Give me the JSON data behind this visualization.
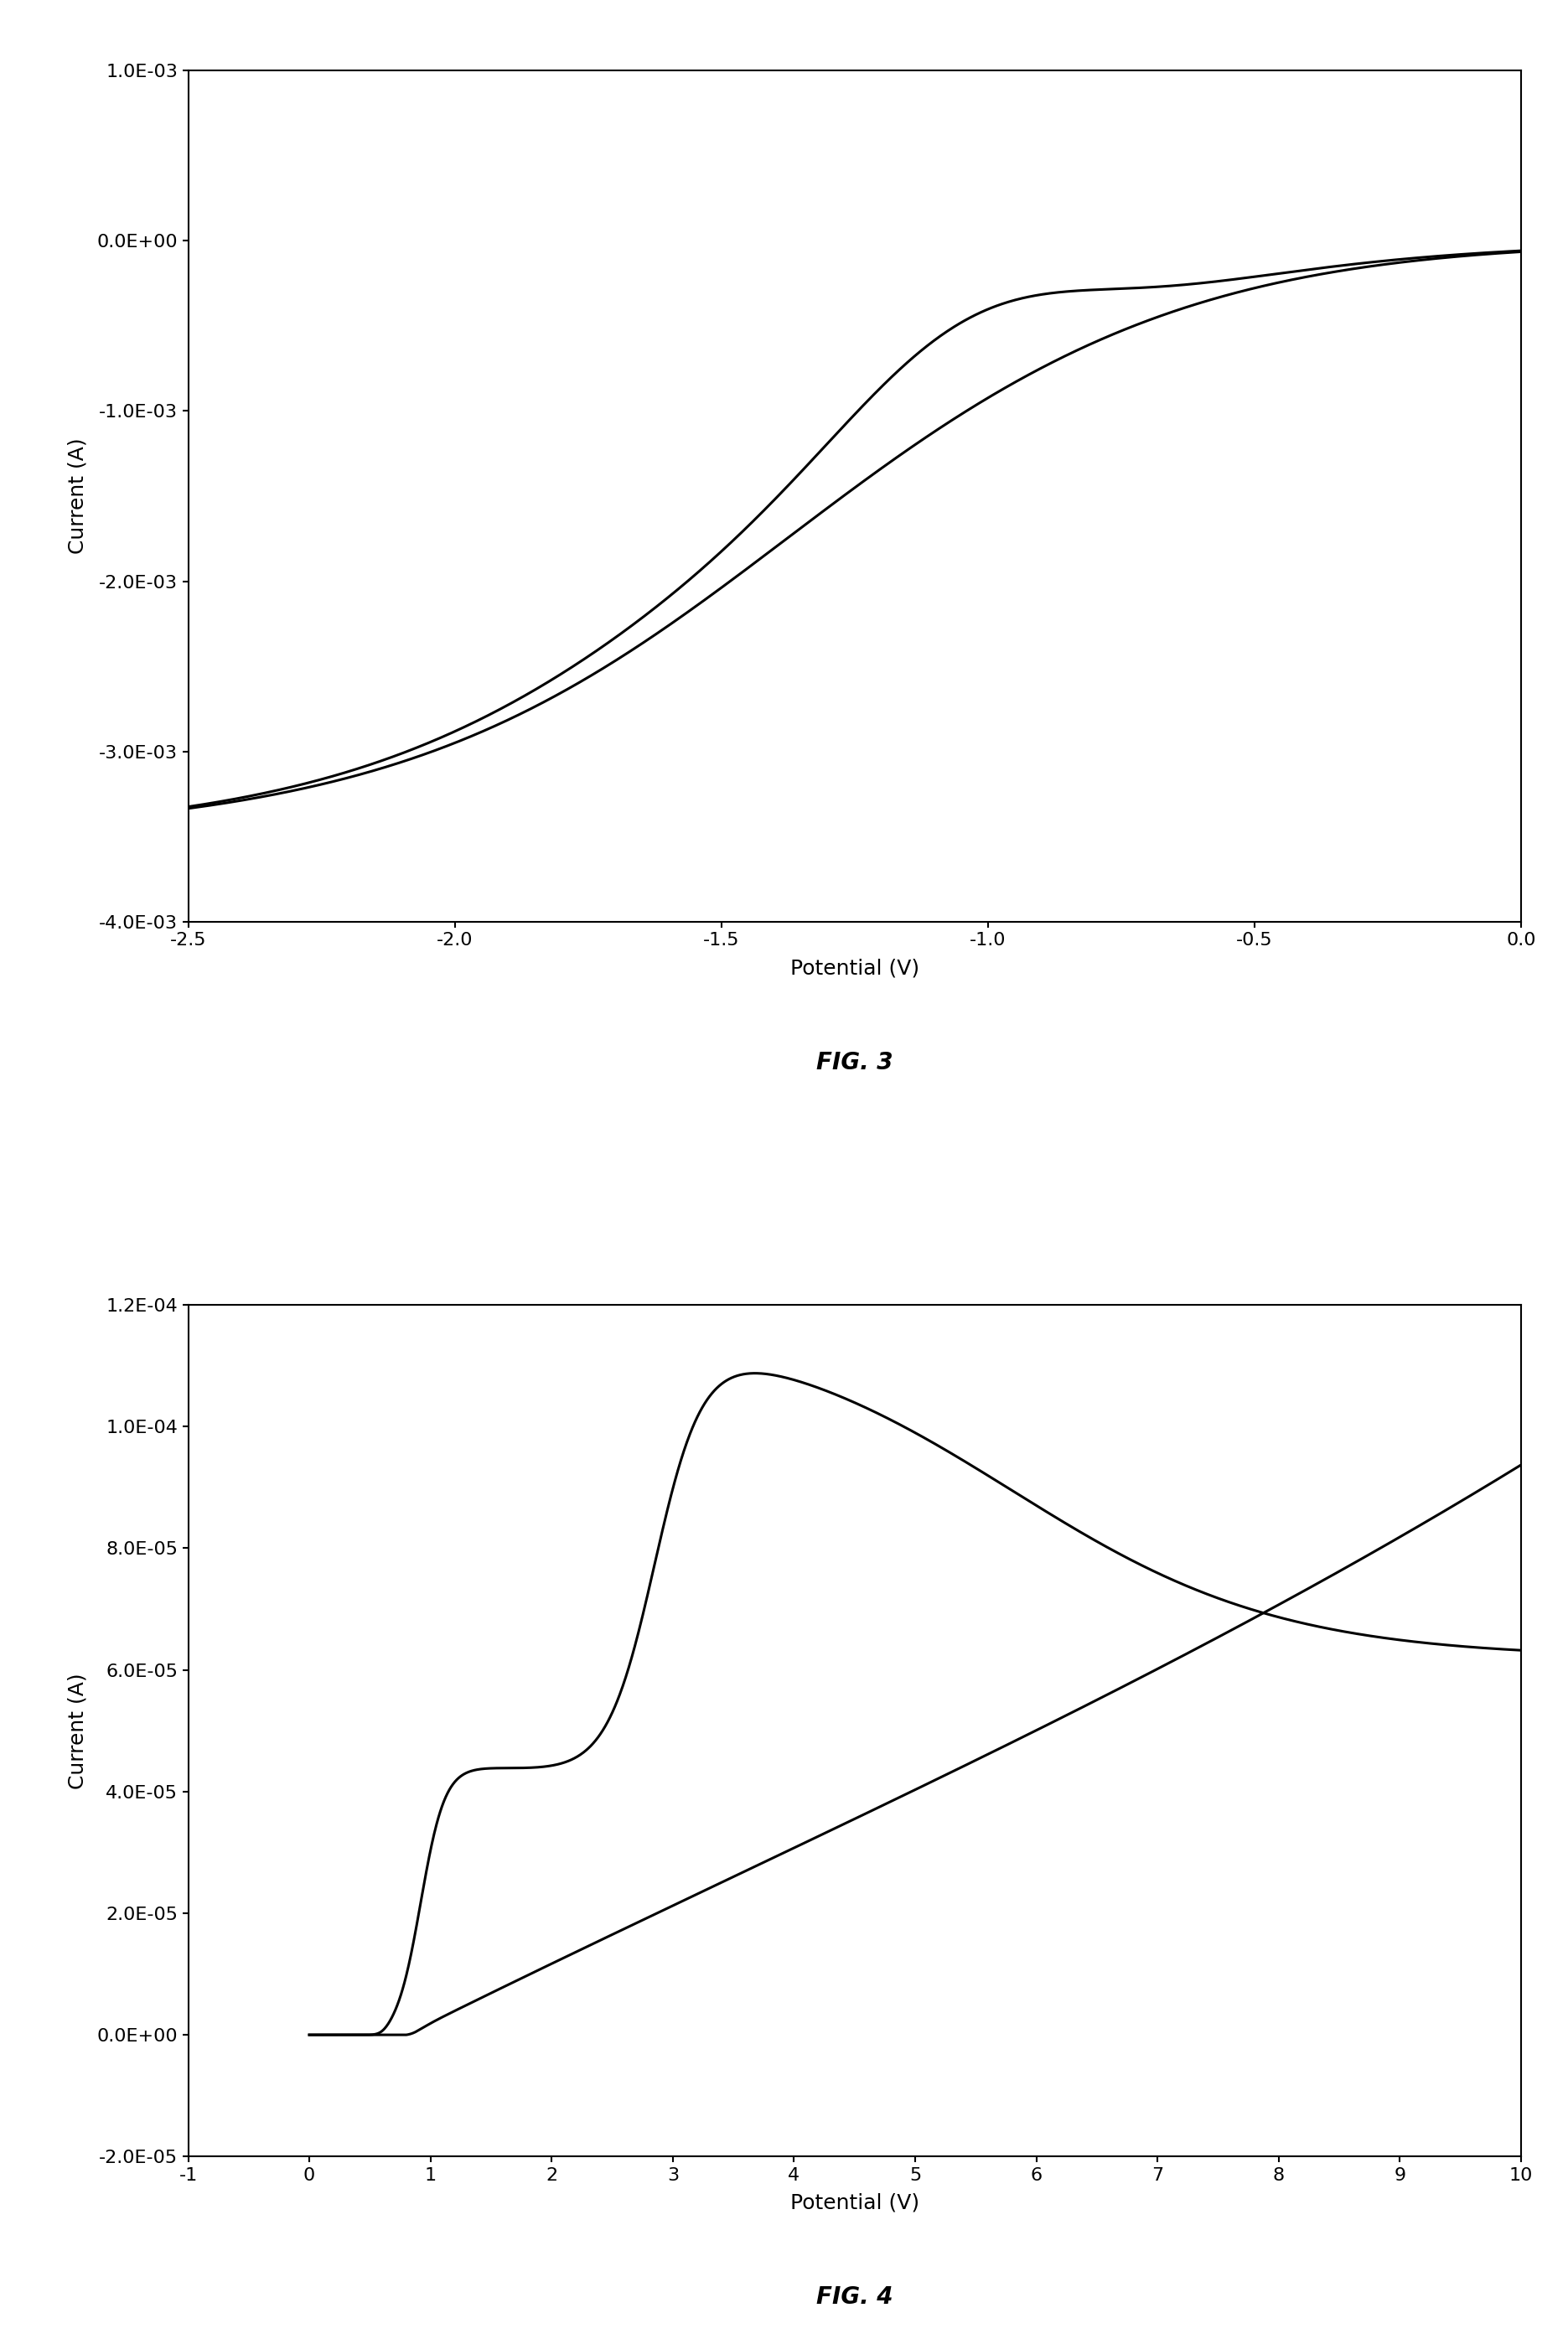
{
  "fig3": {
    "title": "FIG. 3",
    "xlabel": "Potential (V)",
    "ylabel": "Current (A)",
    "xlim": [
      -2.5,
      0.0
    ],
    "ylim": [
      -0.004,
      0.001
    ],
    "yticks": [
      -0.004,
      -0.003,
      -0.002,
      -0.001,
      0.0,
      0.001
    ],
    "ytick_labels": [
      "-4.0E-03",
      "-3.0E-03",
      "-2.0E-03",
      "-1.0E-03",
      "0.0E+00",
      "1.0E-03"
    ],
    "xticks": [
      -2.5,
      -2.0,
      -1.5,
      -1.0,
      -0.5,
      0.0
    ],
    "xtick_labels": [
      "-2.5",
      "-2.0",
      "-1.5",
      "-1.0",
      "-0.5",
      "0.0"
    ],
    "line_color": "#000000",
    "line_width": 2.2
  },
  "fig4": {
    "title": "FIG. 4",
    "xlabel": "Potential (V)",
    "ylabel": "Current (A)",
    "xlim": [
      -1,
      10
    ],
    "ylim": [
      -2e-05,
      0.00012
    ],
    "yticks": [
      -2e-05,
      0.0,
      2e-05,
      4e-05,
      6e-05,
      8e-05,
      0.0001,
      0.00012
    ],
    "ytick_labels": [
      "-2.0E-05",
      "0.0E+00",
      "2.0E-05",
      "4.0E-05",
      "6.0E-05",
      "8.0E-05",
      "1.0E-04",
      "1.2E-04"
    ],
    "xticks": [
      -1,
      0,
      1,
      2,
      3,
      4,
      5,
      6,
      7,
      8,
      9,
      10
    ],
    "xtick_labels": [
      "-1",
      "0",
      "1",
      "2",
      "3",
      "4",
      "5",
      "6",
      "7",
      "8",
      "9",
      "10"
    ],
    "line_color": "#000000",
    "line_width": 2.2
  },
  "background_color": "#ffffff",
  "fig_label_fontsize": 20,
  "label_fontsize": 18,
  "tick_fontsize": 16
}
